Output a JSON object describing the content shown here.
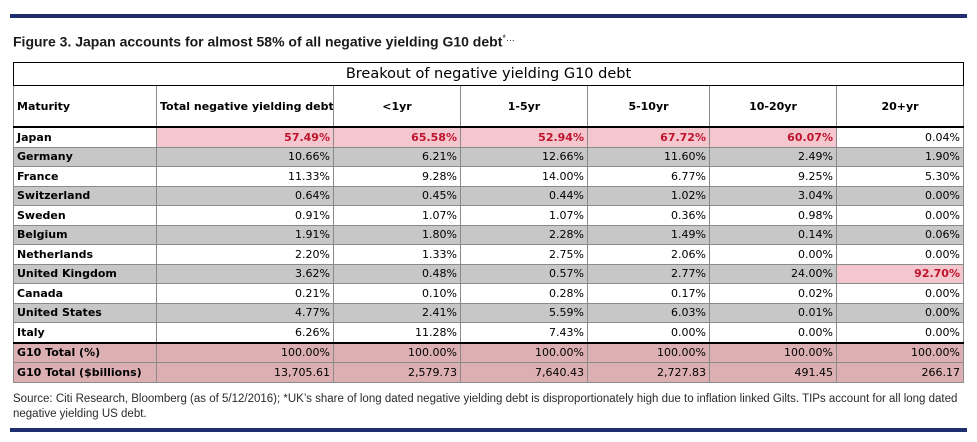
{
  "figure": {
    "title": "Figure 3. Japan accounts for almost 58% of all negative yielding G10 debt",
    "title_sup": "*…"
  },
  "table": {
    "caption": "Breakout of negative yielding G10 debt",
    "headers": [
      "Maturity",
      "Total negative yielding debt",
      "<1yr",
      "1-5yr",
      "5-10yr",
      "10-20yr",
      "20+yr"
    ],
    "rows": [
      {
        "name": "Japan",
        "values": [
          "57.49%",
          "65.58%",
          "52.94%",
          "67.72%",
          "60.07%",
          "0.04%"
        ],
        "highlight": [
          true,
          true,
          true,
          true,
          true,
          false
        ],
        "shade": "white"
      },
      {
        "name": "Germany",
        "values": [
          "10.66%",
          "6.21%",
          "12.66%",
          "11.60%",
          "2.49%",
          "1.90%"
        ],
        "highlight": [
          false,
          false,
          false,
          false,
          false,
          false
        ],
        "shade": "gray"
      },
      {
        "name": "France",
        "values": [
          "11.33%",
          "9.28%",
          "14.00%",
          "6.77%",
          "9.25%",
          "5.30%"
        ],
        "highlight": [
          false,
          false,
          false,
          false,
          false,
          false
        ],
        "shade": "white"
      },
      {
        "name": "Switzerland",
        "values": [
          "0.64%",
          "0.45%",
          "0.44%",
          "1.02%",
          "3.04%",
          "0.00%"
        ],
        "highlight": [
          false,
          false,
          false,
          false,
          false,
          false
        ],
        "shade": "gray"
      },
      {
        "name": "Sweden",
        "values": [
          "0.91%",
          "1.07%",
          "1.07%",
          "0.36%",
          "0.98%",
          "0.00%"
        ],
        "highlight": [
          false,
          false,
          false,
          false,
          false,
          false
        ],
        "shade": "white"
      },
      {
        "name": "Belgium",
        "values": [
          "1.91%",
          "1.80%",
          "2.28%",
          "1.49%",
          "0.14%",
          "0.06%"
        ],
        "highlight": [
          false,
          false,
          false,
          false,
          false,
          false
        ],
        "shade": "gray"
      },
      {
        "name": "Netherlands",
        "values": [
          "2.20%",
          "1.33%",
          "2.75%",
          "2.06%",
          "0.00%",
          "0.00%"
        ],
        "highlight": [
          false,
          false,
          false,
          false,
          false,
          false
        ],
        "shade": "white"
      },
      {
        "name": "United Kingdom",
        "values": [
          "3.62%",
          "0.48%",
          "0.57%",
          "2.77%",
          "24.00%",
          "92.70%"
        ],
        "highlight": [
          false,
          false,
          false,
          false,
          false,
          true
        ],
        "shade": "gray"
      },
      {
        "name": "Canada",
        "values": [
          "0.21%",
          "0.10%",
          "0.28%",
          "0.17%",
          "0.02%",
          "0.00%"
        ],
        "highlight": [
          false,
          false,
          false,
          false,
          false,
          false
        ],
        "shade": "white"
      },
      {
        "name": "United States",
        "values": [
          "4.77%",
          "2.41%",
          "5.59%",
          "6.03%",
          "0.01%",
          "0.00%"
        ],
        "highlight": [
          false,
          false,
          false,
          false,
          false,
          false
        ],
        "shade": "gray"
      },
      {
        "name": "Italy",
        "values": [
          "6.26%",
          "11.28%",
          "7.43%",
          "0.00%",
          "0.00%",
          "0.00%"
        ],
        "highlight": [
          false,
          false,
          false,
          false,
          false,
          false
        ],
        "shade": "white"
      }
    ],
    "totals": [
      {
        "name": "G10 Total (%)",
        "values": [
          "100.00%",
          "100.00%",
          "100.00%",
          "100.00%",
          "100.00%",
          "100.00%"
        ]
      },
      {
        "name": "G10 Total ($billions)",
        "values": [
          "13,705.61",
          "2,579.73",
          "7,640.43",
          "2,727.83",
          "491.45",
          "266.17"
        ]
      }
    ]
  },
  "source": "Source: Citi Research, Bloomberg (as of 5/12/2016); *UK’s share of long dated negative yielding debt is disproportionately high due to inflation linked Gilts. TIPs account for all long dated negative yielding US debt.",
  "colors": {
    "rule": "#1f2e6e",
    "highlight_bg": "#f4c6cd",
    "highlight_text": "#c0142e",
    "gray_row": "#c7c7c7",
    "total_row": "#dcb0b2"
  }
}
